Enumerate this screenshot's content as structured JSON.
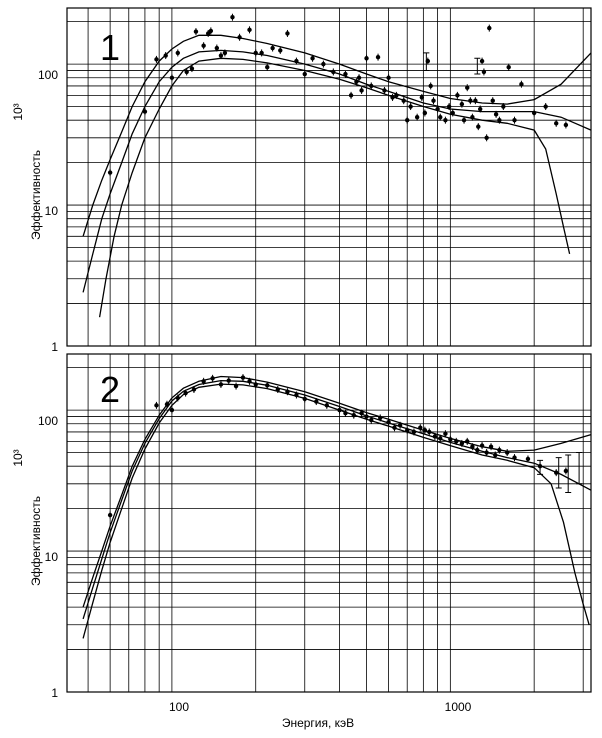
{
  "chart_data": [
    {
      "type": "scatter",
      "panel_label": "1",
      "xlabel": "",
      "ylabel": "Эффективность",
      "ylabel_unit": "10³",
      "x_scale": "log",
      "y_scale": "log",
      "xlim": [
        42,
        3200
      ],
      "ylim": [
        1,
        250
      ],
      "x_tick_labels": [
        "100",
        "1000"
      ],
      "y_tick_labels": [
        "1",
        "10",
        "100"
      ],
      "grid": true,
      "series": [
        {
          "values": [
            [
              60,
              17
            ],
            [
              80,
              46
            ],
            [
              88,
              108
            ],
            [
              95,
              115
            ],
            [
              100,
              80
            ],
            [
              105,
              120
            ],
            [
              113,
              88
            ],
            [
              118,
              93
            ],
            [
              122,
              170
            ],
            [
              130,
              135
            ],
            [
              135,
              165
            ],
            [
              138,
              172
            ],
            [
              145,
              130
            ],
            [
              150,
              115
            ],
            [
              155,
              120
            ],
            [
              165,
              215
            ],
            [
              175,
              155
            ],
            [
              190,
              175
            ],
            [
              200,
              120
            ],
            [
              210,
              120
            ],
            [
              220,
              95
            ],
            [
              230,
              130
            ],
            [
              245,
              125
            ],
            [
              260,
              165
            ],
            [
              280,
              105
            ],
            [
              300,
              85
            ],
            [
              320,
              110
            ],
            [
              350,
              100
            ],
            [
              380,
              88
            ],
            [
              420,
              85
            ],
            [
              440,
              60
            ],
            [
              460,
              75
            ],
            [
              470,
              80
            ],
            [
              480,
              65
            ],
            [
              500,
              110
            ],
            [
              520,
              70
            ],
            [
              550,
              112
            ],
            [
              580,
              65
            ],
            [
              600,
              80
            ],
            [
              620,
              58
            ],
            [
              640,
              60
            ],
            [
              680,
              55
            ],
            [
              700,
              40
            ],
            [
              720,
              50
            ],
            [
              760,
              42
            ],
            [
              790,
              58
            ],
            [
              810,
              45
            ],
            [
              830,
              105
            ],
            [
              850,
              70
            ],
            [
              870,
              55
            ],
            [
              900,
              48
            ],
            [
              920,
              42
            ],
            [
              960,
              40
            ],
            [
              990,
              50
            ],
            [
              1020,
              45
            ],
            [
              1060,
              60
            ],
            [
              1100,
              52
            ],
            [
              1120,
              40
            ],
            [
              1150,
              68
            ],
            [
              1180,
              55
            ],
            [
              1200,
              42
            ],
            [
              1230,
              55
            ],
            [
              1260,
              36
            ],
            [
              1280,
              48
            ],
            [
              1300,
              105
            ],
            [
              1320,
              88
            ],
            [
              1350,
              30
            ],
            [
              1380,
              180
            ],
            [
              1420,
              55
            ],
            [
              1460,
              44
            ],
            [
              1500,
              40
            ],
            [
              1550,
              50
            ],
            [
              1620,
              95
            ],
            [
              1700,
              40
            ],
            [
              1800,
              72
            ],
            [
              2000,
              45
            ],
            [
              2200,
              50
            ],
            [
              2400,
              38
            ],
            [
              2600,
              37
            ]
          ]
        }
      ]
    },
    {
      "type": "scatter",
      "panel_label": "2",
      "xlabel": "Энергия, кэВ",
      "ylabel": "Эффективность",
      "ylabel_unit": "10³",
      "x_scale": "log",
      "y_scale": "log",
      "xlim": [
        42,
        3200
      ],
      "ylim": [
        1,
        250
      ],
      "x_tick_labels": [
        "100",
        "1000"
      ],
      "y_tick_labels": [
        "1",
        "10",
        "100"
      ],
      "grid": true,
      "series": [
        {
          "values": [
            [
              60,
              18
            ],
            [
              88,
              108
            ],
            [
              96,
              110
            ],
            [
              100,
              100
            ],
            [
              105,
              122
            ],
            [
              112,
              132
            ],
            [
              120,
              140
            ],
            [
              130,
              160
            ],
            [
              140,
              168
            ],
            [
              150,
              152
            ],
            [
              160,
              162
            ],
            [
              170,
              148
            ],
            [
              180,
              170
            ],
            [
              190,
              160
            ],
            [
              200,
              152
            ],
            [
              220,
              150
            ],
            [
              240,
              140
            ],
            [
              260,
              135
            ],
            [
              280,
              128
            ],
            [
              300,
              120
            ],
            [
              330,
              115
            ],
            [
              360,
              108
            ],
            [
              400,
              100
            ],
            [
              420,
              95
            ],
            [
              450,
              92
            ],
            [
              480,
              95
            ],
            [
              500,
              90
            ],
            [
              520,
              85
            ],
            [
              560,
              88
            ],
            [
              600,
              82
            ],
            [
              630,
              75
            ],
            [
              660,
              78
            ],
            [
              700,
              72
            ],
            [
              740,
              70
            ],
            [
              780,
              75
            ],
            [
              810,
              72
            ],
            [
              840,
              70
            ],
            [
              880,
              65
            ],
            [
              920,
              63
            ],
            [
              960,
              68
            ],
            [
              1000,
              62
            ],
            [
              1050,
              60
            ],
            [
              1100,
              58
            ],
            [
              1150,
              60
            ],
            [
              1200,
              55
            ],
            [
              1250,
              52
            ],
            [
              1300,
              56
            ],
            [
              1350,
              50
            ],
            [
              1400,
              55
            ],
            [
              1450,
              48
            ],
            [
              1500,
              52
            ],
            [
              1600,
              50
            ],
            [
              1700,
              46
            ],
            [
              1900,
              45
            ],
            [
              2100,
              40
            ],
            [
              2400,
              36
            ],
            [
              2600,
              37
            ]
          ]
        }
      ]
    }
  ]
}
